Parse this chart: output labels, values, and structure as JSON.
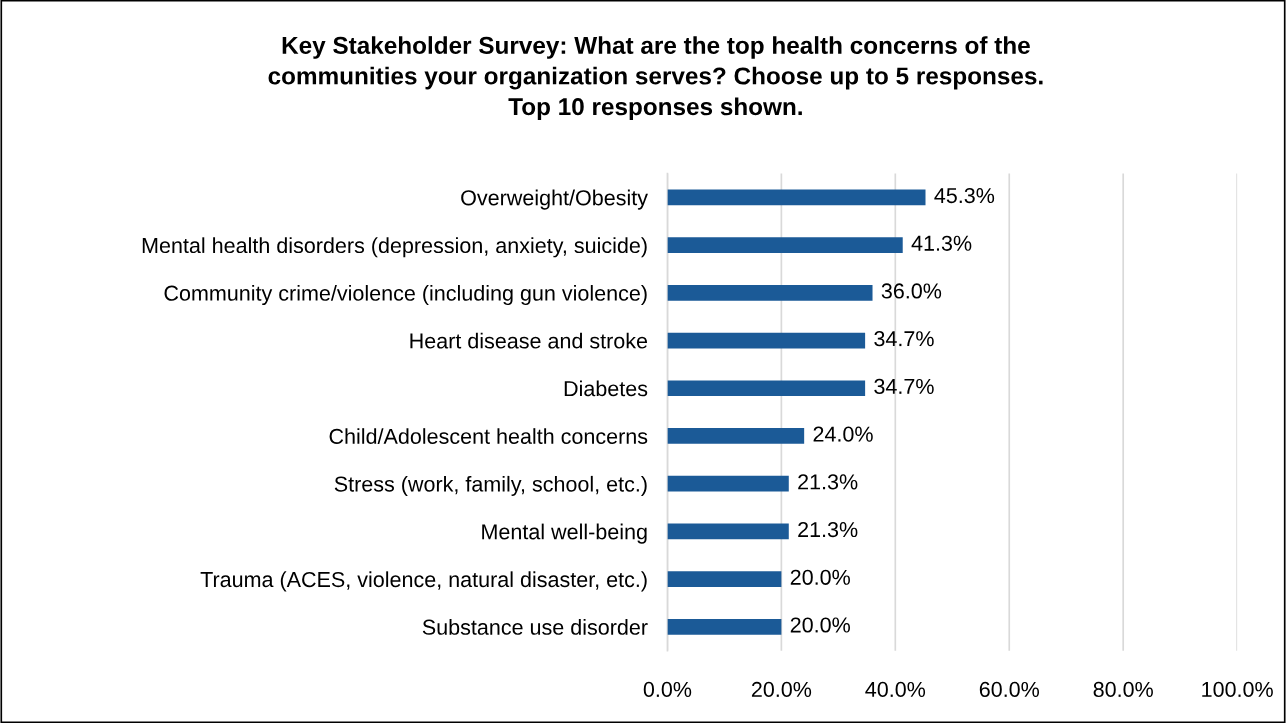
{
  "chart_data": {
    "type": "bar",
    "orientation": "horizontal",
    "title": "Key Stakeholder Survey: What are the top health concerns of the\ncommunities your organization serves? Choose up to 5 responses.\nTop 10 responses shown.",
    "categories": [
      "Overweight/Obesity",
      "Mental health disorders (depression, anxiety, suicide)",
      "Community crime/violence (including gun violence)",
      "Heart disease and stroke",
      "Diabetes",
      "Child/Adolescent health concerns",
      "Stress (work, family, school, etc.)",
      "Mental well-being",
      "Trauma (ACES, violence, natural disaster, etc.)",
      "Substance use disorder"
    ],
    "values": [
      45.3,
      41.3,
      36.0,
      34.7,
      34.7,
      24.0,
      21.3,
      21.3,
      20.0,
      20.0
    ],
    "value_labels": [
      "45.3%",
      "41.3%",
      "36.0%",
      "34.7%",
      "34.7%",
      "24.0%",
      "21.3%",
      "21.3%",
      "20.0%",
      "20.0%"
    ],
    "color": "#1b5a97",
    "xlim": [
      0,
      100
    ],
    "xticks": [
      {
        "value": 0,
        "label": "0.0%"
      },
      {
        "value": 20,
        "label": "20.0%"
      },
      {
        "value": 40,
        "label": "40.0%"
      },
      {
        "value": 60,
        "label": "60.0%"
      },
      {
        "value": 80,
        "label": "80.0%"
      },
      {
        "value": 100,
        "label": "100.0%"
      }
    ],
    "grid": "x"
  }
}
